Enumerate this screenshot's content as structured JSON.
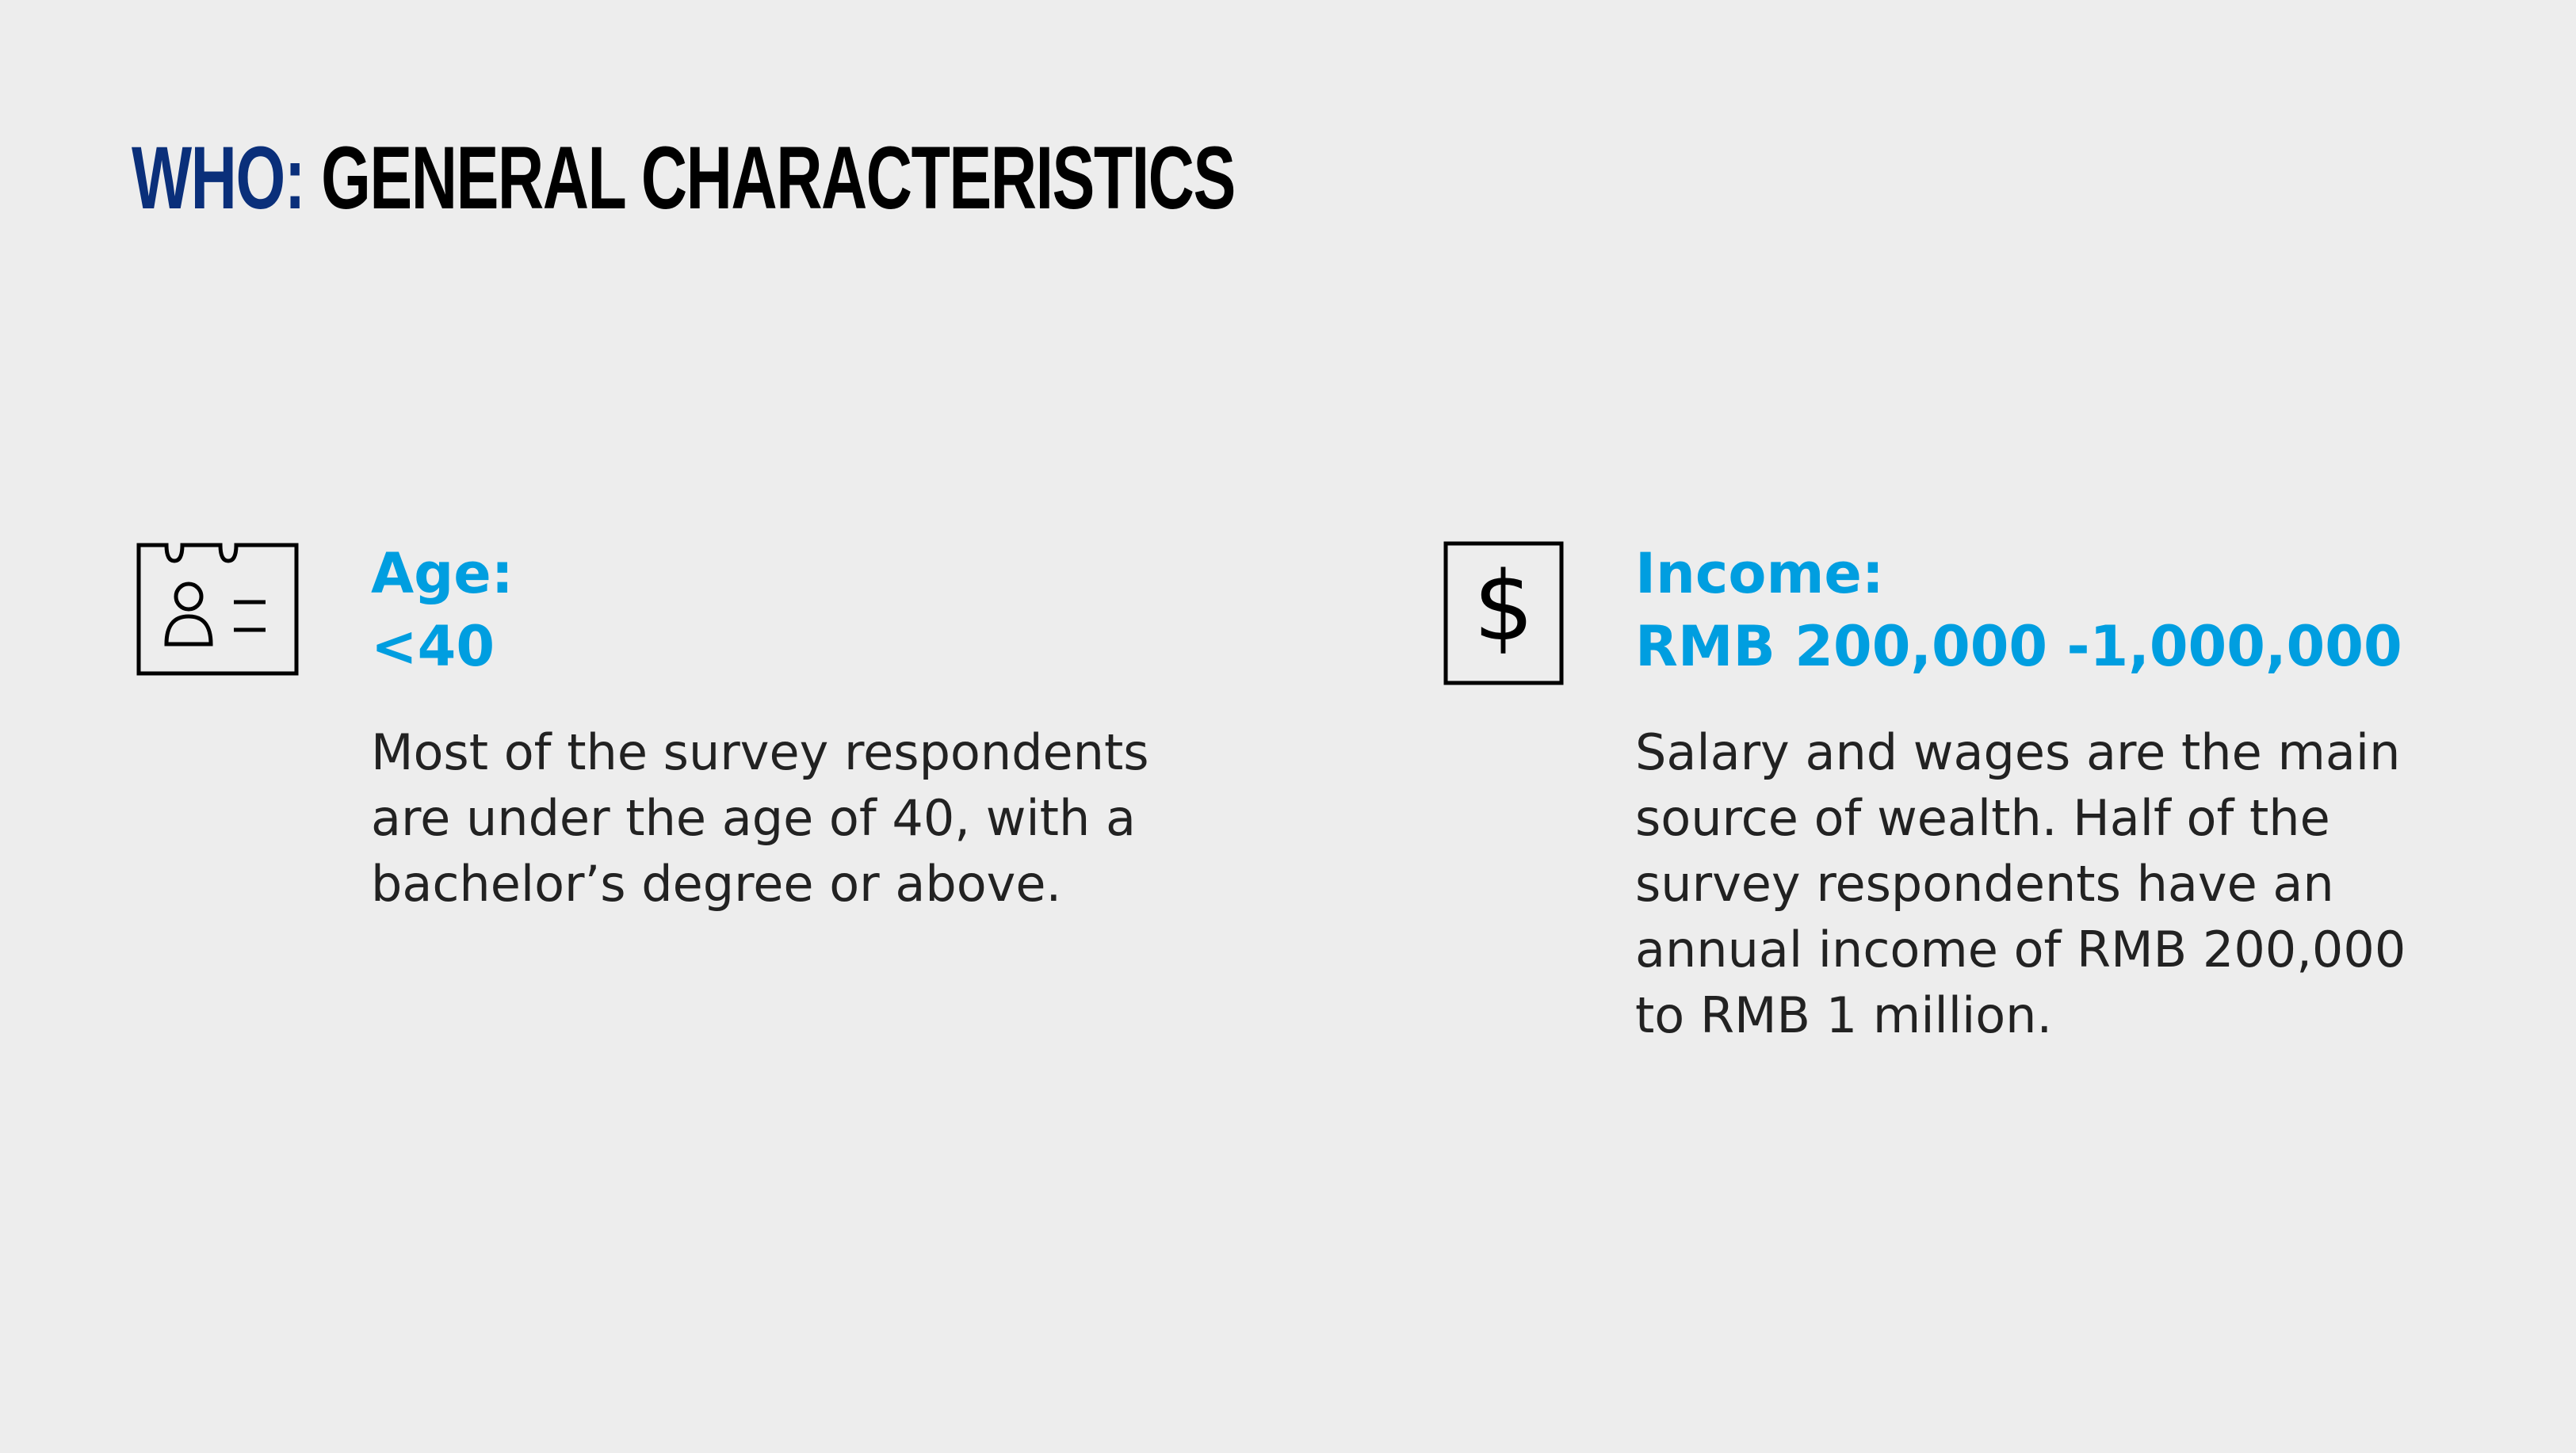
{
  "title": {
    "accent": "WHO:",
    "rest": "GENERAL CHARACTERISTICS"
  },
  "colors": {
    "accent_blue": "#009ee0",
    "title_navy": "#0a2f7a",
    "background": "#ededed"
  },
  "cards": [
    {
      "icon": "id-card-icon",
      "heading_line1": "Age:",
      "heading_line2": "<40",
      "body": "Most of the survey respondents are under the age of 40, with a bachelor’s degree or above."
    },
    {
      "icon": "dollar-icon",
      "heading_line1": "Income:",
      "heading_line2": "RMB 200,000 -1,000,000",
      "body": "Salary and wages are the main source of wealth. Half of the survey respondents have an annual income of RMB 200,000 to RMB 1 million."
    }
  ]
}
